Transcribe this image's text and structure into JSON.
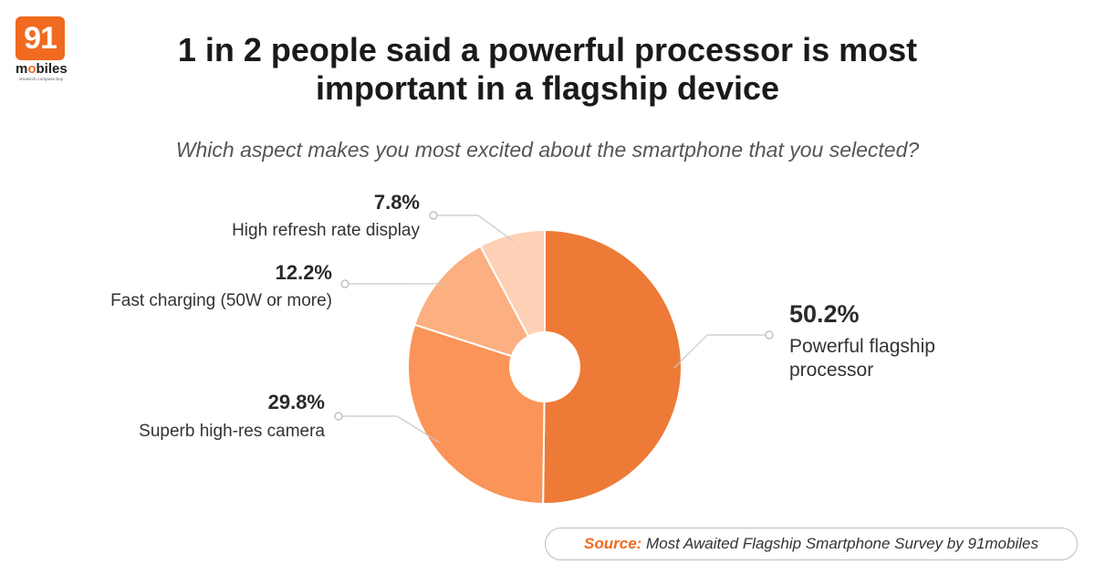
{
  "logo": {
    "number": "91",
    "word_prefix": "m",
    "word_o": "o",
    "word_suffix": "biles",
    "tagline": "research.compare.buy"
  },
  "title_line1": "1 in 2 people said a powerful processor is most",
  "title_line2": "important in a flagship device",
  "subtitle": "Which aspect makes you most excited about the smartphone that you selected?",
  "source": {
    "label": "Source:",
    "text": " Most Awaited Flagship Smartphone Survey by 91mobiles"
  },
  "colors": {
    "processor": "#ee7a37",
    "camera": "#fa9458",
    "charging": "#fcaf80",
    "display": "#fed0b5",
    "accent": "#f06a1f"
  },
  "chart_data": {
    "type": "pie",
    "title": "Which aspect makes you most excited about the smartphone that you selected?",
    "donut": true,
    "slices": [
      {
        "label": "Powerful flagship processor",
        "label_lines": [
          "Powerful flagship",
          "processor"
        ],
        "value": 50.2,
        "value_text": "50.2%",
        "color": "#ee7a37"
      },
      {
        "label": "Superb high-res camera",
        "label_lines": [
          "Superb high-res camera"
        ],
        "value": 29.8,
        "value_text": "29.8%",
        "color": "#fa9458"
      },
      {
        "label": "Fast charging (50W or more)",
        "label_lines": [
          "Fast charging (50W or more)"
        ],
        "value": 12.2,
        "value_text": "12.2%",
        "color": "#fcaf80"
      },
      {
        "label": "High refresh rate display",
        "label_lines": [
          "High refresh rate display"
        ],
        "value": 7.8,
        "value_text": "7.8%",
        "color": "#fed0b5"
      }
    ]
  }
}
